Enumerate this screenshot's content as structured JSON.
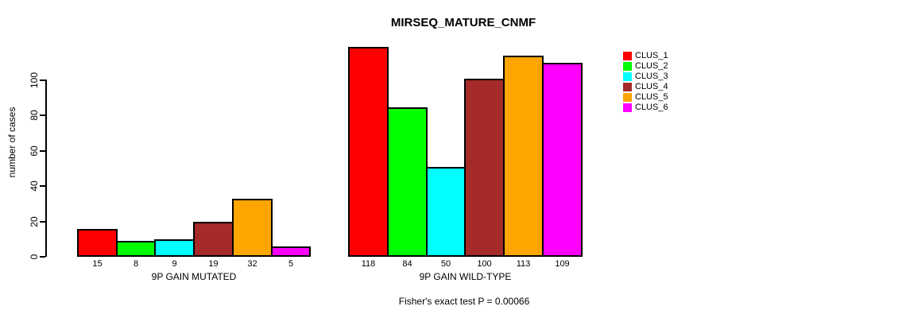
{
  "chart_data": {
    "type": "bar",
    "title": "MIRSEQ_MATURE_CNMF",
    "ylabel": "number of cases",
    "xlabel": "",
    "yticks": [
      0,
      20,
      40,
      60,
      80,
      100
    ],
    "ylim": [
      0,
      118
    ],
    "grid": false,
    "legend_position": "right",
    "series": [
      {
        "name": "CLUS_1",
        "color": "#FF0000"
      },
      {
        "name": "CLUS_2",
        "color": "#00FF00"
      },
      {
        "name": "CLUS_3",
        "color": "#00FFFF"
      },
      {
        "name": "CLUS_4",
        "color": "#A52A2A"
      },
      {
        "name": "CLUS_5",
        "color": "#FFA500"
      },
      {
        "name": "CLUS_6",
        "color": "#FF00FF"
      }
    ],
    "groups": [
      {
        "label": "9P GAIN MUTATED",
        "values": [
          15,
          8,
          9,
          19,
          32,
          5
        ]
      },
      {
        "label": "9P GAIN WILD-TYPE",
        "values": [
          118,
          84,
          50,
          100,
          113,
          109
        ]
      }
    ],
    "bar_value_labels_shown": true,
    "annotation": "Fisher's exact test P = 0.00066"
  },
  "colors": {
    "background": "#FFFFFF",
    "axis": "#000000",
    "text": "#000000"
  }
}
